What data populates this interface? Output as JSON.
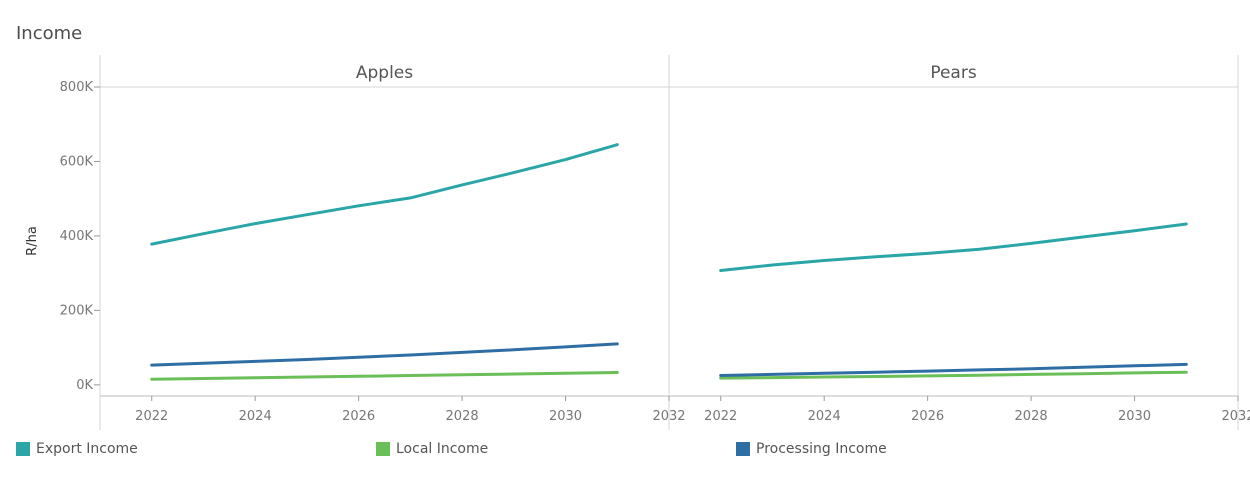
{
  "chart_data": {
    "type": "line",
    "title": "Income",
    "ylabel": "R/ha",
    "x_ticks": [
      2022,
      2024,
      2026,
      2028,
      2030,
      2032
    ],
    "xlim": [
      2021,
      2032
    ],
    "y_ticks": [
      0,
      200000,
      400000,
      600000,
      800000
    ],
    "y_tick_labels": [
      "0K",
      "200K",
      "400K",
      "600K",
      "800K"
    ],
    "ylim": [
      -30000,
      800000
    ],
    "grid": false,
    "legend_position": "bottom",
    "legend": [
      {
        "name": "Export Income",
        "color": "#2aa5a8"
      },
      {
        "name": "Local Income",
        "color": "#6abf59"
      },
      {
        "name": "Processing Income",
        "color": "#2f6ea5"
      }
    ],
    "panels": [
      {
        "title": "Apples",
        "series": [
          {
            "name": "Export Income",
            "color": "#2aa5a8",
            "x": [
              2022,
              2023,
              2024,
              2025,
              2026,
              2027,
              2028,
              2029,
              2030,
              2031
            ],
            "values": [
              378000,
              406000,
              433000,
              457000,
              481000,
              502000,
              537000,
              570000,
              605000,
              645000
            ]
          },
          {
            "name": "Local Income",
            "color": "#6abf59",
            "x": [
              2022,
              2023,
              2024,
              2025,
              2026,
              2027,
              2028,
              2029,
              2030,
              2031
            ],
            "values": [
              15000,
              17000,
              19000,
              21000,
              23000,
              25000,
              27000,
              29000,
              31000,
              33000
            ]
          },
          {
            "name": "Processing Income",
            "color": "#2f6ea5",
            "x": [
              2022,
              2023,
              2024,
              2025,
              2026,
              2027,
              2028,
              2029,
              2030,
              2031
            ],
            "values": [
              53000,
              58000,
              63000,
              68000,
              74000,
              80000,
              87000,
              94000,
              102000,
              110000
            ]
          }
        ]
      },
      {
        "title": "Pears",
        "series": [
          {
            "name": "Export Income",
            "color": "#2aa5a8",
            "x": [
              2022,
              2023,
              2024,
              2025,
              2026,
              2027,
              2028,
              2029,
              2030,
              2031
            ],
            "values": [
              307000,
              322000,
              334000,
              344000,
              353000,
              364000,
              380000,
              397000,
              414000,
              432000
            ]
          },
          {
            "name": "Local Income",
            "color": "#6abf59",
            "x": [
              2022,
              2023,
              2024,
              2025,
              2026,
              2027,
              2028,
              2029,
              2030,
              2031
            ],
            "values": [
              18000,
              19500,
              21000,
              22500,
              24000,
              26000,
              28000,
              30000,
              32000,
              34000
            ]
          },
          {
            "name": "Processing Income",
            "color": "#2f6ea5",
            "x": [
              2022,
              2023,
              2024,
              2025,
              2026,
              2027,
              2028,
              2029,
              2030,
              2031
            ],
            "values": [
              25000,
              28000,
              31000,
              34000,
              37000,
              40000,
              43000,
              47000,
              51000,
              55000
            ]
          }
        ]
      }
    ]
  }
}
